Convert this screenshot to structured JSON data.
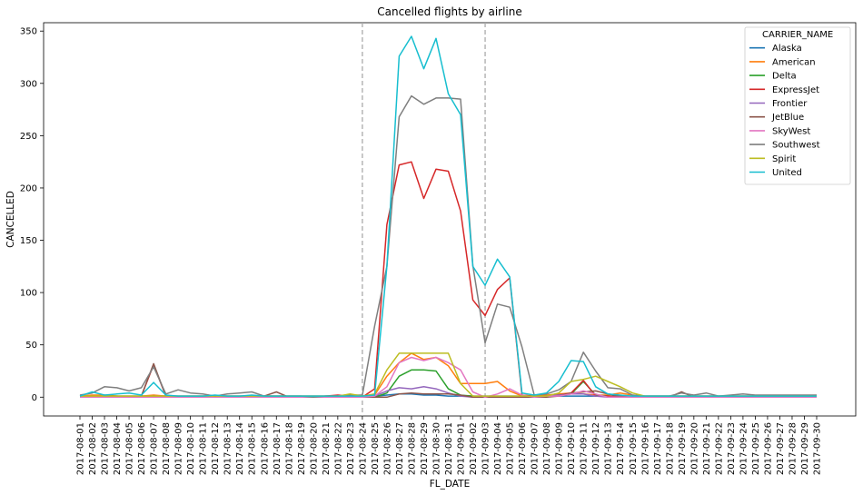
{
  "chart_data": {
    "type": "line",
    "title": "Cancelled flights by airline",
    "xlabel": "FL_DATE",
    "ylabel": "CANCELLED",
    "ylim": [
      -18,
      358
    ],
    "yticks": [
      0,
      50,
      100,
      150,
      200,
      250,
      300,
      350
    ],
    "grid": false,
    "legend": {
      "title": "CARRIER_NAME",
      "placement": "top-right"
    },
    "vlines": [
      {
        "x": "2017-08-24",
        "style": "dashed",
        "color": "#aaaaaa"
      },
      {
        "x": "2017-09-03",
        "style": "dashed",
        "color": "#aaaaaa"
      }
    ],
    "x": [
      "2017-08-01",
      "2017-08-02",
      "2017-08-03",
      "2017-08-04",
      "2017-08-05",
      "2017-08-06",
      "2017-08-07",
      "2017-08-08",
      "2017-08-09",
      "2017-08-10",
      "2017-08-11",
      "2017-08-12",
      "2017-08-13",
      "2017-08-14",
      "2017-08-15",
      "2017-08-16",
      "2017-08-17",
      "2017-08-18",
      "2017-08-19",
      "2017-08-20",
      "2017-08-21",
      "2017-08-22",
      "2017-08-23",
      "2017-08-24",
      "2017-08-25",
      "2017-08-26",
      "2017-08-27",
      "2017-08-28",
      "2017-08-29",
      "2017-08-30",
      "2017-08-31",
      "2017-09-01",
      "2017-09-02",
      "2017-09-03",
      "2017-09-04",
      "2017-09-05",
      "2017-09-06",
      "2017-09-07",
      "2017-09-08",
      "2017-09-09",
      "2017-09-10",
      "2017-09-11",
      "2017-09-12",
      "2017-09-13",
      "2017-09-14",
      "2017-09-15",
      "2017-09-16",
      "2017-09-17",
      "2017-09-18",
      "2017-09-19",
      "2017-09-20",
      "2017-09-21",
      "2017-09-22",
      "2017-09-23",
      "2017-09-24",
      "2017-09-25",
      "2017-09-26",
      "2017-09-27",
      "2017-09-28",
      "2017-09-29",
      "2017-09-30"
    ],
    "series": [
      {
        "name": "Alaska",
        "color": "#1f77b4",
        "values": [
          1,
          1,
          1,
          1,
          1,
          1,
          1,
          1,
          1,
          1,
          1,
          1,
          1,
          1,
          1,
          1,
          1,
          1,
          1,
          1,
          1,
          1,
          1,
          1,
          1,
          2,
          3,
          3,
          2,
          2,
          1,
          1,
          1,
          1,
          1,
          1,
          1,
          1,
          1,
          1,
          1,
          1,
          1,
          1,
          1,
          1,
          1,
          1,
          1,
          1,
          1,
          1,
          1,
          1,
          1,
          1,
          1,
          1,
          1,
          1,
          1
        ]
      },
      {
        "name": "American",
        "color": "#ff7f0e",
        "values": [
          1,
          2,
          2,
          1,
          1,
          1,
          2,
          1,
          1,
          1,
          1,
          1,
          1,
          1,
          1,
          1,
          1,
          1,
          1,
          1,
          1,
          1,
          2,
          1,
          2,
          20,
          33,
          42,
          36,
          38,
          30,
          13,
          13,
          13,
          15,
          6,
          1,
          1,
          2,
          3,
          4,
          3,
          2,
          2,
          4,
          2,
          1,
          1,
          1,
          1,
          1,
          1,
          1,
          1,
          1,
          1,
          1,
          1,
          1,
          1,
          1
        ]
      },
      {
        "name": "Delta",
        "color": "#2ca02c",
        "values": [
          0,
          0,
          1,
          1,
          0,
          0,
          1,
          0,
          0,
          0,
          0,
          0,
          0,
          0,
          0,
          0,
          0,
          0,
          0,
          0,
          0,
          0,
          0,
          0,
          0,
          4,
          20,
          26,
          26,
          25,
          8,
          2,
          1,
          0,
          0,
          0,
          0,
          0,
          1,
          2,
          3,
          15,
          2,
          1,
          0,
          0,
          0,
          0,
          0,
          0,
          0,
          0,
          0,
          0,
          0,
          0,
          0,
          0,
          0,
          0,
          0
        ]
      },
      {
        "name": "ExpressJet",
        "color": "#d62728",
        "values": [
          0,
          0,
          0,
          0,
          0,
          1,
          31,
          1,
          0,
          0,
          0,
          0,
          0,
          0,
          0,
          0,
          0,
          0,
          0,
          0,
          1,
          2,
          1,
          0,
          8,
          165,
          222,
          225,
          190,
          218,
          216,
          178,
          93,
          78,
          103,
          114,
          2,
          1,
          1,
          2,
          4,
          16,
          1,
          1,
          0,
          0,
          0,
          0,
          0,
          0,
          0,
          0,
          0,
          0,
          0,
          0,
          0,
          0,
          0,
          0,
          0
        ]
      },
      {
        "name": "Frontier",
        "color": "#9467bd",
        "values": [
          0,
          0,
          0,
          0,
          0,
          0,
          0,
          0,
          0,
          0,
          0,
          0,
          0,
          0,
          0,
          0,
          0,
          0,
          0,
          0,
          0,
          0,
          0,
          0,
          1,
          6,
          9,
          8,
          10,
          8,
          4,
          1,
          0,
          0,
          0,
          0,
          0,
          0,
          1,
          2,
          3,
          3,
          1,
          0,
          0,
          0,
          0,
          0,
          0,
          0,
          0,
          0,
          0,
          0,
          0,
          0,
          0,
          0,
          0,
          0,
          0
        ]
      },
      {
        "name": "JetBlue",
        "color": "#8c564b",
        "values": [
          0,
          0,
          1,
          0,
          0,
          1,
          32,
          1,
          0,
          0,
          0,
          0,
          0,
          0,
          0,
          1,
          5,
          0,
          0,
          0,
          0,
          0,
          0,
          0,
          0,
          0,
          3,
          4,
          3,
          3,
          3,
          2,
          0,
          0,
          0,
          0,
          0,
          0,
          0,
          1,
          4,
          5,
          6,
          3,
          1,
          0,
          0,
          0,
          0,
          5,
          0,
          0,
          0,
          0,
          0,
          0,
          0,
          0,
          0,
          0,
          0
        ]
      },
      {
        "name": "SkyWest",
        "color": "#e377c2",
        "values": [
          0,
          0,
          0,
          0,
          0,
          0,
          0,
          0,
          0,
          0,
          0,
          0,
          0,
          0,
          0,
          0,
          0,
          0,
          0,
          0,
          0,
          0,
          0,
          0,
          1,
          10,
          33,
          38,
          35,
          38,
          33,
          26,
          5,
          0,
          3,
          8,
          2,
          0,
          1,
          1,
          3,
          6,
          3,
          0,
          0,
          0,
          0,
          0,
          0,
          0,
          0,
          0,
          0,
          0,
          0,
          0,
          0,
          0,
          0,
          0,
          0
        ]
      },
      {
        "name": "Southwest",
        "color": "#7f7f7f",
        "values": [
          2,
          4,
          10,
          9,
          6,
          9,
          29,
          3,
          7,
          4,
          3,
          1,
          3,
          4,
          5,
          1,
          1,
          1,
          1,
          0,
          1,
          1,
          2,
          2,
          68,
          125,
          268,
          288,
          280,
          286,
          286,
          285,
          126,
          52,
          89,
          86,
          48,
          2,
          3,
          7,
          15,
          43,
          25,
          9,
          8,
          2,
          1,
          1,
          1,
          4,
          2,
          4,
          1,
          2,
          3,
          2,
          2,
          2,
          2,
          2,
          2
        ]
      },
      {
        "name": "Spirit",
        "color": "#bcbd22",
        "values": [
          1,
          1,
          1,
          1,
          1,
          1,
          1,
          1,
          1,
          1,
          1,
          1,
          1,
          1,
          1,
          1,
          1,
          1,
          1,
          1,
          1,
          1,
          3,
          1,
          3,
          26,
          42,
          42,
          42,
          42,
          42,
          13,
          1,
          1,
          1,
          1,
          1,
          1,
          1,
          4,
          15,
          17,
          20,
          15,
          10,
          4,
          1,
          1,
          1,
          1,
          1,
          1,
          1,
          1,
          1,
          1,
          1,
          1,
          1,
          1,
          1
        ]
      },
      {
        "name": "United",
        "color": "#17becf",
        "values": [
          1,
          5,
          2,
          3,
          4,
          2,
          14,
          2,
          1,
          1,
          1,
          2,
          1,
          1,
          2,
          1,
          1,
          1,
          1,
          1,
          1,
          1,
          1,
          1,
          2,
          125,
          326,
          345,
          314,
          343,
          290,
          270,
          125,
          107,
          132,
          115,
          4,
          2,
          4,
          15,
          35,
          34,
          10,
          3,
          2,
          1,
          1,
          1,
          1,
          1,
          1,
          1,
          1,
          1,
          1,
          1,
          1,
          1,
          1,
          1,
          1
        ]
      }
    ]
  }
}
